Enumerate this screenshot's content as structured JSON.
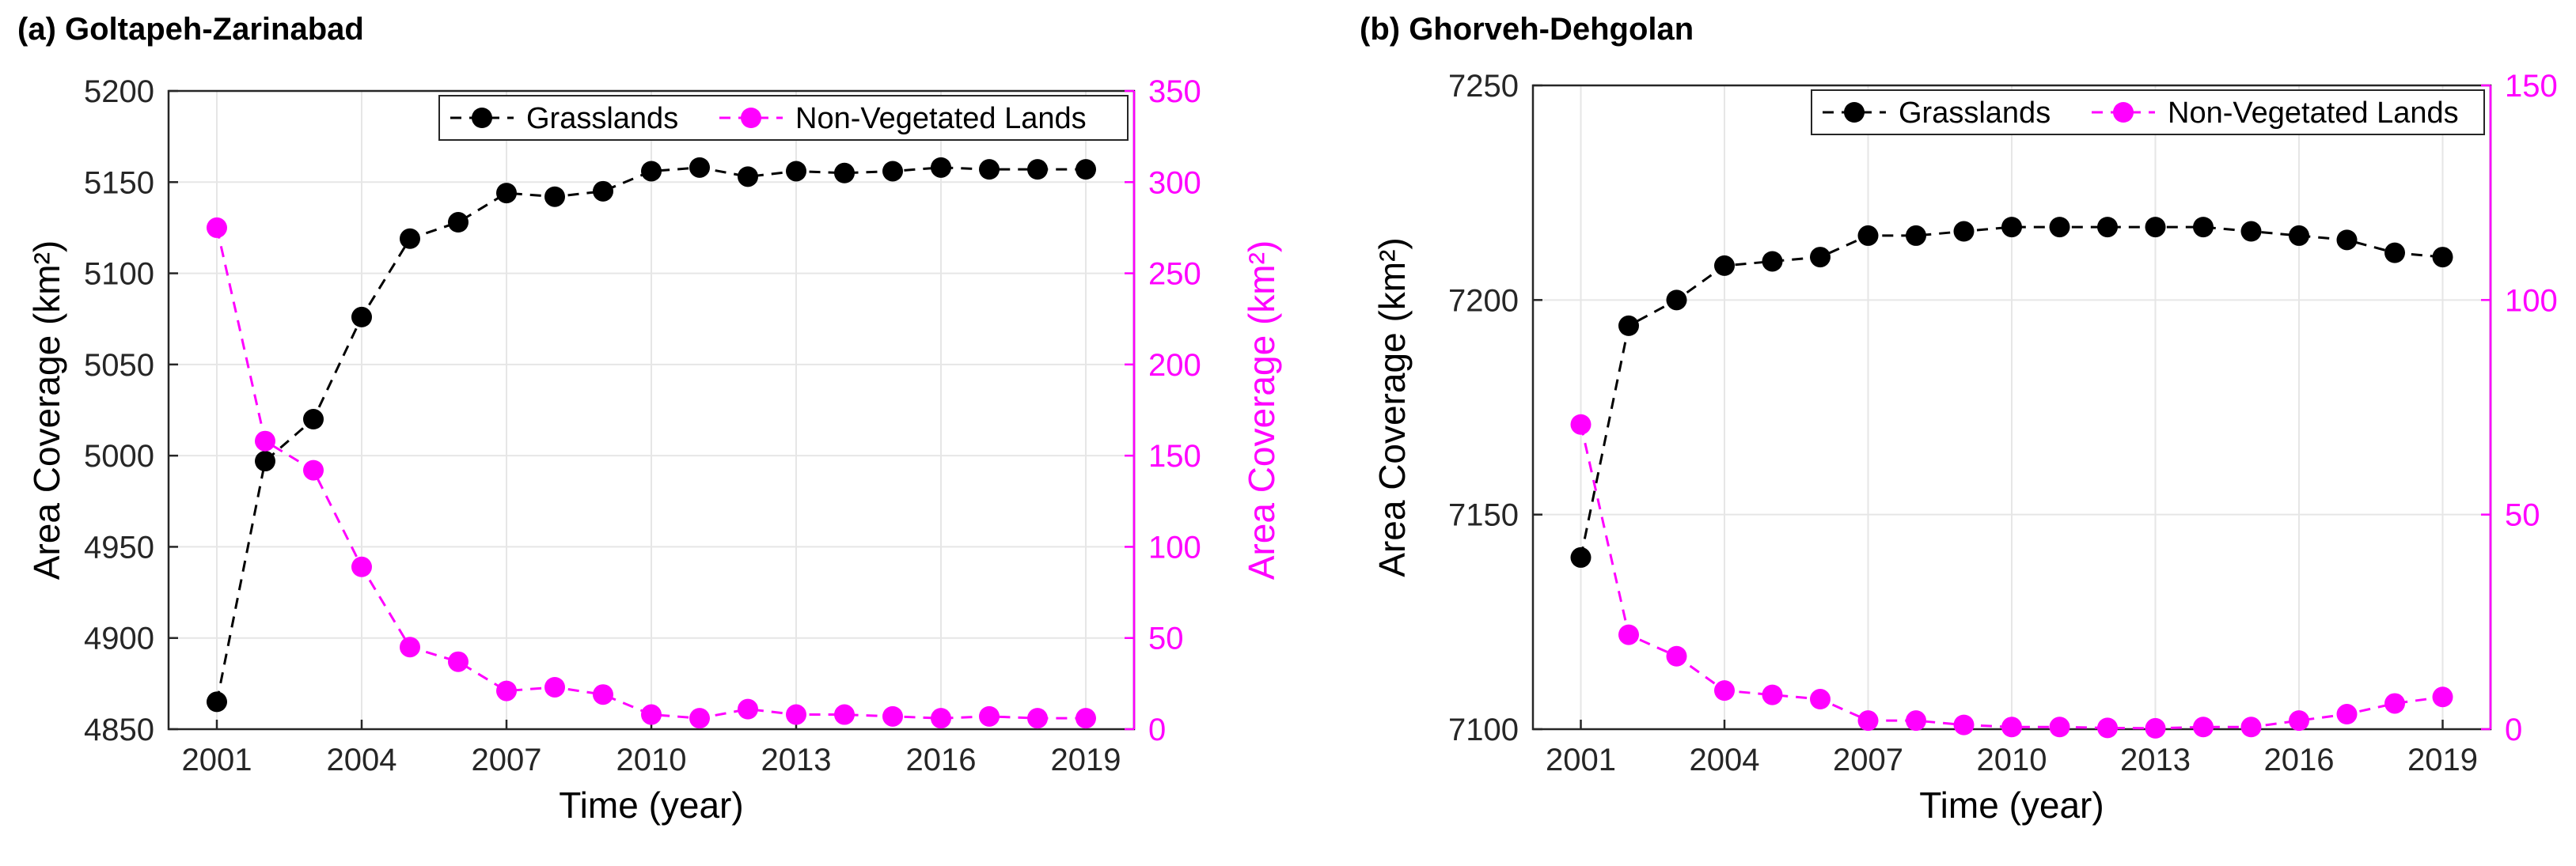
{
  "colors": {
    "grasslands": "#000000",
    "non_vegetated": "#ff00ff",
    "grid": "#e6e6e6",
    "axis": "#000000"
  },
  "chart_data": [
    {
      "type": "line",
      "title": "(a) Goltapeh-Zarinabad",
      "xlabel": "Time (year)",
      "ylabel_left": "Area Coverage (km²)",
      "ylabel_right": "Area Coverage (km²)",
      "xlim": [
        2000,
        2020
      ],
      "xticks": [
        2001,
        2004,
        2007,
        2010,
        2013,
        2016,
        2019
      ],
      "ylim_left": [
        4850,
        5200
      ],
      "yticks_left": [
        4850,
        4900,
        4950,
        5000,
        5050,
        5100,
        5150,
        5200
      ],
      "ylim_right": [
        0,
        350
      ],
      "yticks_right": [
        0,
        50,
        100,
        150,
        200,
        250,
        300,
        350
      ],
      "legend_position": "top-right",
      "grid": true,
      "x": [
        2001,
        2002,
        2003,
        2004,
        2005,
        2006,
        2007,
        2008,
        2009,
        2010,
        2011,
        2012,
        2013,
        2014,
        2015,
        2016,
        2017,
        2018,
        2019
      ],
      "series": [
        {
          "name": "Grasslands",
          "axis": "left",
          "values": [
            4865,
            4997,
            5020,
            5076,
            5119,
            5128,
            5144,
            5142,
            5145,
            5156,
            5158,
            5153,
            5156,
            5155,
            5156,
            5158,
            5157,
            5157,
            5157
          ]
        },
        {
          "name": "Non-Vegetated Lands",
          "axis": "right",
          "values": [
            275,
            158,
            142,
            89,
            45,
            37,
            21,
            23,
            19,
            8,
            6,
            11,
            8,
            8,
            7,
            6,
            7,
            6,
            6
          ]
        }
      ]
    },
    {
      "type": "line",
      "title": "(b) Ghorveh-Dehgolan",
      "xlabel": "Time (year)",
      "ylabel_left": "Area Coverage (km²)",
      "xlim": [
        2000,
        2020
      ],
      "xticks": [
        2001,
        2004,
        2007,
        2010,
        2013,
        2016,
        2019
      ],
      "ylim_left": [
        7100,
        7250
      ],
      "yticks_left": [
        7100,
        7150,
        7200,
        7250
      ],
      "ylim_right": [
        0,
        150
      ],
      "yticks_right": [
        0,
        50,
        100,
        150
      ],
      "legend_position": "top-right",
      "grid": true,
      "x": [
        2001,
        2002,
        2003,
        2004,
        2005,
        2006,
        2007,
        2008,
        2009,
        2010,
        2011,
        2012,
        2013,
        2014,
        2015,
        2016,
        2017,
        2018,
        2019
      ],
      "series": [
        {
          "name": "Grasslands",
          "axis": "left",
          "values": [
            7140,
            7194,
            7200,
            7208,
            7209,
            7210,
            7215,
            7215,
            7216,
            7217,
            7217,
            7217,
            7217,
            7217,
            7216,
            7215,
            7214,
            7211,
            7210
          ]
        },
        {
          "name": "Non-Vegetated Lands",
          "axis": "right",
          "values": [
            71,
            22,
            17,
            9,
            8,
            7,
            2,
            2,
            1,
            0.5,
            0.5,
            0.3,
            0.2,
            0.5,
            0.5,
            2,
            3.5,
            6,
            7.5
          ]
        }
      ]
    }
  ]
}
